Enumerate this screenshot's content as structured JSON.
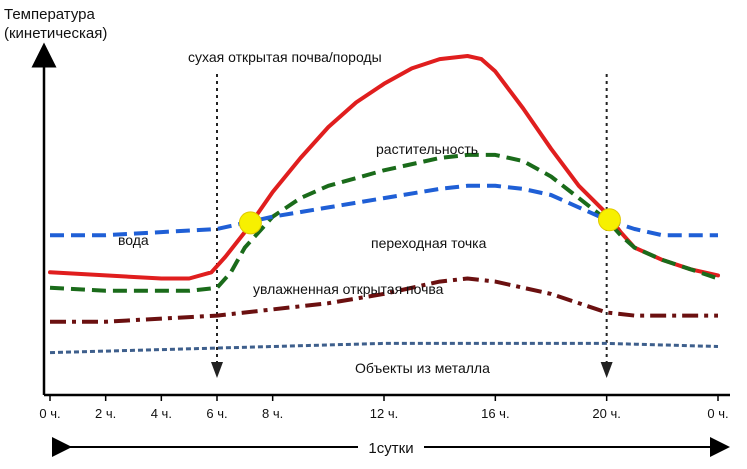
{
  "chart_data": {
    "type": "line",
    "ylabel_lines": [
      "Температура",
      "(кинетическая)"
    ],
    "x_ticks": [
      {
        "t": 0,
        "label": "0 ч."
      },
      {
        "t": 2,
        "label": "2 ч."
      },
      {
        "t": 4,
        "label": "4 ч."
      },
      {
        "t": 6,
        "label": "6 ч."
      },
      {
        "t": 8,
        "label": "8 ч."
      },
      {
        "t": 12,
        "label": "12 ч."
      },
      {
        "t": 16,
        "label": "16 ч."
      },
      {
        "t": 20,
        "label": "20 ч."
      },
      {
        "t": 24,
        "label": "0 ч."
      }
    ],
    "xlim": [
      0,
      24
    ],
    "ylim": [
      0,
      100
    ],
    "period_label": "1сутки",
    "vertical_markers": [
      6,
      20
    ],
    "crossover_points": [
      {
        "x": 7.2,
        "y": 46
      },
      {
        "x": 20.1,
        "y": 47
      }
    ],
    "series": [
      {
        "name": "сухая открытая почва/породы",
        "color": "#e01e1e",
        "style": "solid",
        "x": [
          0,
          2,
          4,
          5,
          5.8,
          6.3,
          7,
          8,
          9,
          10,
          11,
          12,
          13,
          14,
          15,
          15.5,
          16,
          17,
          18,
          19,
          20,
          20.5,
          21,
          22,
          23,
          24
        ],
        "y": [
          30,
          29,
          28,
          28,
          30,
          35,
          43,
          56,
          67,
          77,
          85,
          91,
          96,
          99,
          100,
          99,
          95,
          83,
          70,
          58,
          49,
          43,
          38,
          34,
          31,
          29
        ]
      },
      {
        "name": "растительность",
        "color": "#1a6b1a",
        "style": "dashed",
        "x": [
          0,
          2,
          4,
          5,
          6,
          6.5,
          7,
          8,
          9,
          10,
          12,
          14,
          15,
          16,
          17,
          18,
          19,
          20,
          20.5,
          21,
          22,
          23,
          24
        ],
        "y": [
          25,
          24,
          24,
          24,
          25,
          30,
          38,
          48,
          54,
          58,
          63,
          67,
          68,
          68,
          66,
          61,
          54,
          47,
          42,
          38,
          34,
          31,
          28
        ]
      },
      {
        "name": "вода",
        "color": "#1f5fd6",
        "style": "dashed",
        "x": [
          0,
          2,
          4,
          6,
          7,
          8,
          10,
          12,
          14,
          15,
          16,
          17,
          18,
          19,
          20,
          21,
          22,
          24
        ],
        "y": [
          42,
          42,
          43,
          44,
          46,
          48,
          51,
          54,
          57,
          58,
          58,
          57,
          55,
          51,
          47,
          44,
          42,
          42
        ]
      },
      {
        "name": "увлажненная открытая почва",
        "color": "#6b1010",
        "style": "dashdot",
        "x": [
          0,
          2,
          4,
          6,
          8,
          10,
          12,
          14,
          15,
          16,
          18,
          20,
          21,
          22,
          24
        ],
        "y": [
          14,
          14,
          15,
          16,
          18,
          20,
          23,
          27,
          28,
          27,
          23,
          17,
          16,
          16,
          16
        ]
      },
      {
        "name": "Объекты из металла",
        "color": "#3e5f8c",
        "style": "dotted",
        "x": [
          0,
          4,
          8,
          12,
          16,
          20,
          24
        ],
        "y": [
          4,
          5,
          6,
          7,
          7,
          7,
          6
        ]
      }
    ]
  }
}
